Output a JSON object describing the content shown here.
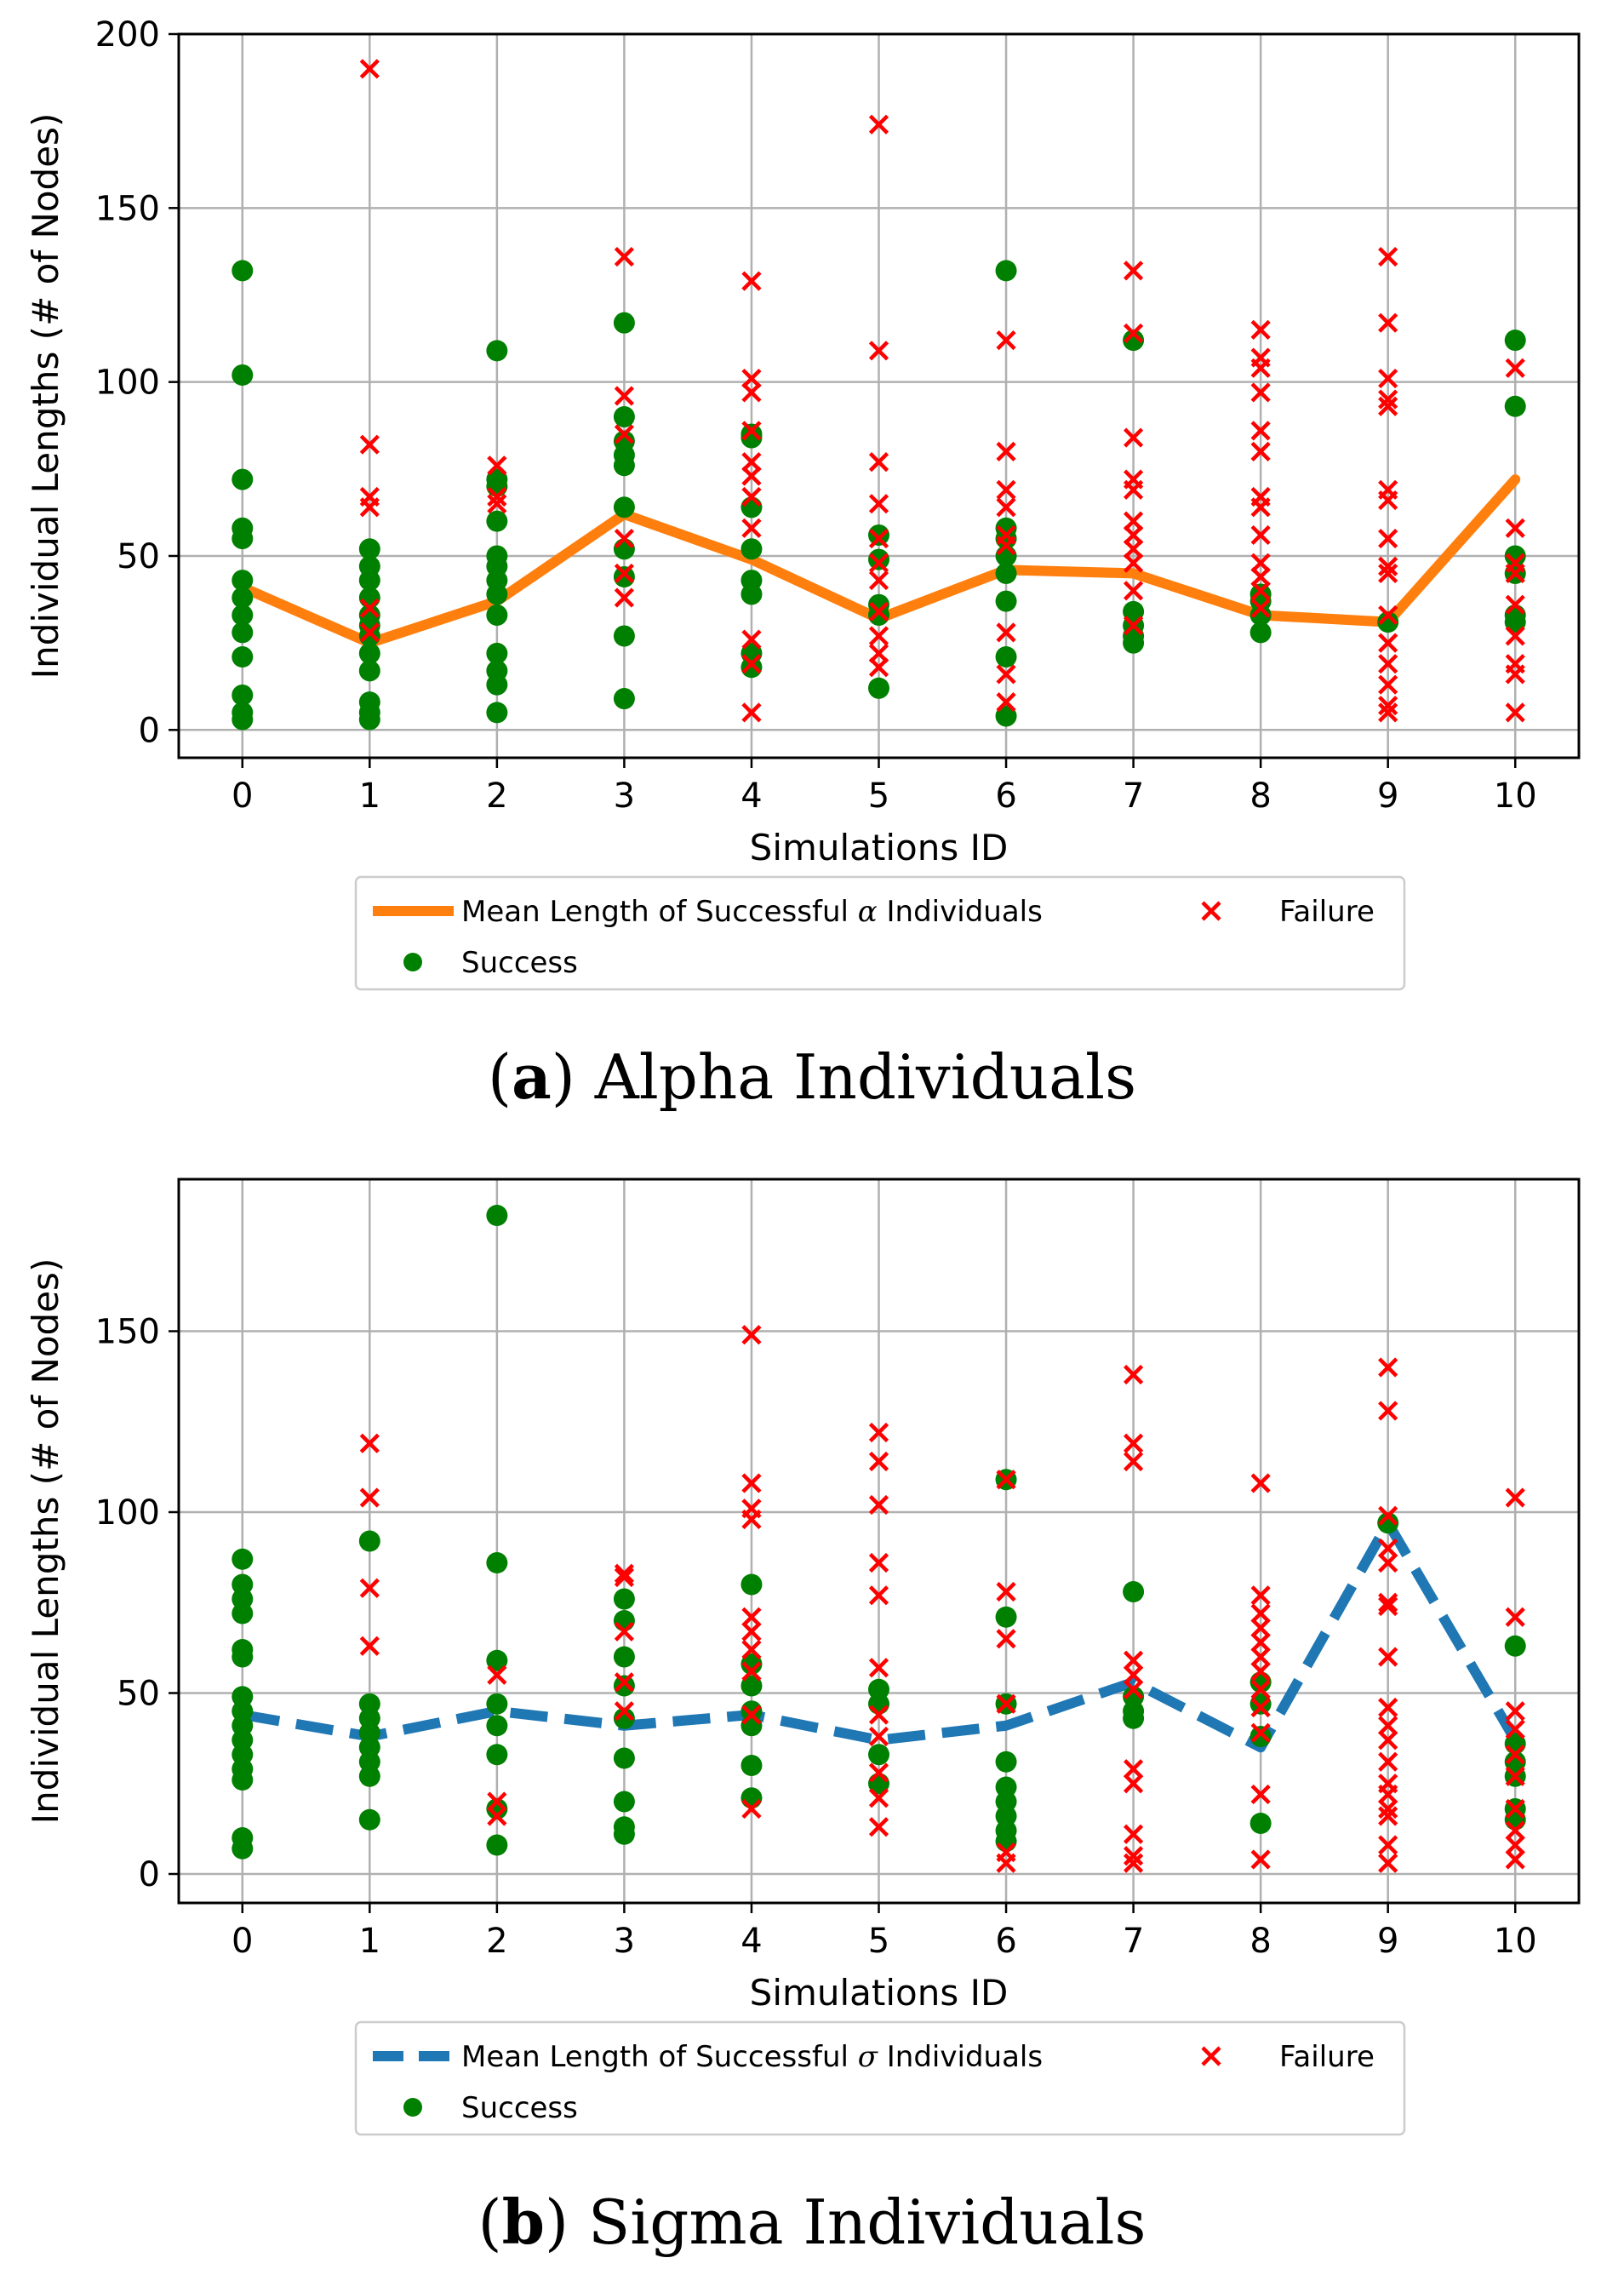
{
  "chart_data": [
    {
      "type": "scatter",
      "panel_id": "alpha",
      "caption": {
        "letter": "a",
        "text": "Alpha Individuals"
      },
      "xlabel": "Simulations ID",
      "ylabel": "Individual Lengths (# of Nodes)",
      "xlim": [
        -0.5,
        10.5
      ],
      "ylim": [
        -8,
        200
      ],
      "x_ticks": [
        "0",
        "1",
        "2",
        "3",
        "4",
        "5",
        "6",
        "7",
        "8",
        "9",
        "10"
      ],
      "y_ticks": [
        "0",
        "50",
        "100",
        "150",
        "200"
      ],
      "grid": true,
      "legend": {
        "placement": "below",
        "mean_label_pre": "Mean Length of Successful ",
        "greek": "α",
        "mean_label_post": " Individuals",
        "success_label": "Success",
        "failure_label": "Failure"
      },
      "colors": {
        "mean": "#ff7f0e",
        "success": "#008000",
        "failure": "#ff0000"
      },
      "mean_line": {
        "style": "solid",
        "x": [
          0,
          1,
          2,
          3,
          4,
          5,
          6,
          7,
          8,
          9,
          10
        ],
        "values": [
          41,
          25,
          37,
          62,
          49,
          32,
          46,
          45,
          33,
          31,
          72
        ]
      },
      "success": [
        [
          0,
          132
        ],
        [
          0,
          102
        ],
        [
          0,
          72
        ],
        [
          0,
          58
        ],
        [
          0,
          55
        ],
        [
          0,
          43
        ],
        [
          0,
          38
        ],
        [
          0,
          33
        ],
        [
          0,
          28
        ],
        [
          0,
          21
        ],
        [
          0,
          10
        ],
        [
          0,
          5
        ],
        [
          0,
          3
        ],
        [
          1,
          52
        ],
        [
          1,
          47
        ],
        [
          1,
          43
        ],
        [
          1,
          38
        ],
        [
          1,
          33
        ],
        [
          1,
          30
        ],
        [
          1,
          27
        ],
        [
          1,
          22
        ],
        [
          1,
          17
        ],
        [
          1,
          8
        ],
        [
          1,
          5
        ],
        [
          1,
          3
        ],
        [
          2,
          109
        ],
        [
          2,
          72
        ],
        [
          2,
          70
        ],
        [
          2,
          60
        ],
        [
          2,
          50
        ],
        [
          2,
          47
        ],
        [
          2,
          43
        ],
        [
          2,
          39
        ],
        [
          2,
          33
        ],
        [
          2,
          22
        ],
        [
          2,
          17
        ],
        [
          2,
          13
        ],
        [
          2,
          5
        ],
        [
          3,
          117
        ],
        [
          3,
          90
        ],
        [
          3,
          83
        ],
        [
          3,
          79
        ],
        [
          3,
          76
        ],
        [
          3,
          64
        ],
        [
          3,
          52
        ],
        [
          3,
          44
        ],
        [
          3,
          27
        ],
        [
          3,
          9
        ],
        [
          4,
          85
        ],
        [
          4,
          84
        ],
        [
          4,
          64
        ],
        [
          4,
          52
        ],
        [
          4,
          43
        ],
        [
          4,
          39
        ],
        [
          4,
          22
        ],
        [
          4,
          18
        ],
        [
          5,
          56
        ],
        [
          5,
          49
        ],
        [
          5,
          36
        ],
        [
          5,
          33
        ],
        [
          5,
          12
        ],
        [
          6,
          132
        ],
        [
          6,
          58
        ],
        [
          6,
          55
        ],
        [
          6,
          50
        ],
        [
          6,
          45
        ],
        [
          6,
          37
        ],
        [
          6,
          21
        ],
        [
          6,
          4
        ],
        [
          7,
          112
        ],
        [
          7,
          34
        ],
        [
          7,
          30
        ],
        [
          7,
          27
        ],
        [
          7,
          25
        ],
        [
          8,
          39
        ],
        [
          8,
          37
        ],
        [
          8,
          33
        ],
        [
          8,
          28
        ],
        [
          9,
          31
        ],
        [
          10,
          112
        ],
        [
          10,
          93
        ],
        [
          10,
          50
        ],
        [
          10,
          45
        ],
        [
          10,
          33
        ],
        [
          10,
          31
        ]
      ],
      "failure": [
        [
          1,
          190
        ],
        [
          1,
          82
        ],
        [
          1,
          67
        ],
        [
          1,
          64
        ],
        [
          1,
          35
        ],
        [
          1,
          28
        ],
        [
          2,
          76
        ],
        [
          2,
          67
        ],
        [
          2,
          65
        ],
        [
          3,
          136
        ],
        [
          3,
          96
        ],
        [
          3,
          85
        ],
        [
          3,
          55
        ],
        [
          3,
          45
        ],
        [
          3,
          38
        ],
        [
          4,
          129
        ],
        [
          4,
          101
        ],
        [
          4,
          97
        ],
        [
          4,
          86
        ],
        [
          4,
          77
        ],
        [
          4,
          73
        ],
        [
          4,
          67
        ],
        [
          4,
          58
        ],
        [
          4,
          26
        ],
        [
          4,
          19
        ],
        [
          4,
          5
        ],
        [
          5,
          174
        ],
        [
          5,
          109
        ],
        [
          5,
          77
        ],
        [
          5,
          65
        ],
        [
          5,
          55
        ],
        [
          5,
          48
        ],
        [
          5,
          43
        ],
        [
          5,
          34
        ],
        [
          5,
          27
        ],
        [
          5,
          22
        ],
        [
          5,
          18
        ],
        [
          6,
          112
        ],
        [
          6,
          80
        ],
        [
          6,
          69
        ],
        [
          6,
          64
        ],
        [
          6,
          56
        ],
        [
          6,
          53
        ],
        [
          6,
          28
        ],
        [
          6,
          16
        ],
        [
          6,
          8
        ],
        [
          7,
          132
        ],
        [
          7,
          114
        ],
        [
          7,
          84
        ],
        [
          7,
          72
        ],
        [
          7,
          69
        ],
        [
          7,
          60
        ],
        [
          7,
          56
        ],
        [
          7,
          52
        ],
        [
          7,
          48
        ],
        [
          7,
          40
        ],
        [
          7,
          30
        ],
        [
          8,
          115
        ],
        [
          8,
          107
        ],
        [
          8,
          104
        ],
        [
          8,
          97
        ],
        [
          8,
          86
        ],
        [
          8,
          80
        ],
        [
          8,
          67
        ],
        [
          8,
          64
        ],
        [
          8,
          56
        ],
        [
          8,
          48
        ],
        [
          8,
          44
        ],
        [
          8,
          40
        ],
        [
          8,
          35
        ],
        [
          9,
          136
        ],
        [
          9,
          117
        ],
        [
          9,
          101
        ],
        [
          9,
          95
        ],
        [
          9,
          93
        ],
        [
          9,
          69
        ],
        [
          9,
          66
        ],
        [
          9,
          55
        ],
        [
          9,
          47
        ],
        [
          9,
          45
        ],
        [
          9,
          33
        ],
        [
          9,
          25
        ],
        [
          9,
          19
        ],
        [
          9,
          13
        ],
        [
          9,
          7
        ],
        [
          9,
          5
        ],
        [
          10,
          104
        ],
        [
          10,
          58
        ],
        [
          10,
          48
        ],
        [
          10,
          45
        ],
        [
          10,
          36
        ],
        [
          10,
          27
        ],
        [
          10,
          19
        ],
        [
          10,
          16
        ],
        [
          10,
          5
        ]
      ]
    },
    {
      "type": "scatter",
      "panel_id": "sigma",
      "caption": {
        "letter": "b",
        "text": "Sigma Individuals"
      },
      "xlabel": "Simulations ID",
      "ylabel": "Individual Lengths (# of Nodes)",
      "xlim": [
        -0.5,
        10.5
      ],
      "ylim": [
        -8,
        192
      ],
      "x_ticks": [
        "0",
        "1",
        "2",
        "3",
        "4",
        "5",
        "6",
        "7",
        "8",
        "9",
        "10"
      ],
      "y_ticks": [
        "0",
        "50",
        "100",
        "150"
      ],
      "grid": true,
      "legend": {
        "placement": "below",
        "mean_label_pre": "Mean Length of Successful ",
        "greek": "σ",
        "mean_label_post": " Individuals",
        "success_label": "Success",
        "failure_label": "Failure"
      },
      "colors": {
        "mean": "#1f77b4",
        "success": "#008000",
        "failure": "#ff0000"
      },
      "mean_line": {
        "style": "dashed",
        "x": [
          0,
          1,
          2,
          3,
          4,
          5,
          6,
          7,
          8,
          9,
          10
        ],
        "values": [
          44,
          38,
          45,
          41,
          44,
          37,
          41,
          53,
          35,
          97,
          37
        ]
      },
      "success": [
        [
          0,
          87
        ],
        [
          0,
          80
        ],
        [
          0,
          76
        ],
        [
          0,
          72
        ],
        [
          0,
          62
        ],
        [
          0,
          60
        ],
        [
          0,
          49
        ],
        [
          0,
          45
        ],
        [
          0,
          41
        ],
        [
          0,
          37
        ],
        [
          0,
          33
        ],
        [
          0,
          29
        ],
        [
          0,
          26
        ],
        [
          0,
          10
        ],
        [
          0,
          7
        ],
        [
          1,
          92
        ],
        [
          1,
          47
        ],
        [
          1,
          43
        ],
        [
          1,
          39
        ],
        [
          1,
          35
        ],
        [
          1,
          31
        ],
        [
          1,
          27
        ],
        [
          1,
          15
        ],
        [
          2,
          182
        ],
        [
          2,
          86
        ],
        [
          2,
          59
        ],
        [
          2,
          47
        ],
        [
          2,
          41
        ],
        [
          2,
          33
        ],
        [
          2,
          18
        ],
        [
          2,
          8
        ],
        [
          3,
          76
        ],
        [
          3,
          70
        ],
        [
          3,
          60
        ],
        [
          3,
          52
        ],
        [
          3,
          43
        ],
        [
          3,
          32
        ],
        [
          3,
          20
        ],
        [
          3,
          13
        ],
        [
          3,
          11
        ],
        [
          4,
          80
        ],
        [
          4,
          58
        ],
        [
          4,
          52
        ],
        [
          4,
          45
        ],
        [
          4,
          41
        ],
        [
          4,
          30
        ],
        [
          4,
          21
        ],
        [
          5,
          51
        ],
        [
          5,
          47
        ],
        [
          5,
          33
        ],
        [
          5,
          25
        ],
        [
          6,
          109
        ],
        [
          6,
          71
        ],
        [
          6,
          47
        ],
        [
          6,
          31
        ],
        [
          6,
          24
        ],
        [
          6,
          20
        ],
        [
          6,
          16
        ],
        [
          6,
          12
        ],
        [
          6,
          9
        ],
        [
          7,
          78
        ],
        [
          7,
          49
        ],
        [
          7,
          45
        ],
        [
          7,
          43
        ],
        [
          8,
          53
        ],
        [
          8,
          47
        ],
        [
          8,
          38
        ],
        [
          8,
          14
        ],
        [
          9,
          97
        ],
        [
          10,
          63
        ],
        [
          10,
          36
        ],
        [
          10,
          31
        ],
        [
          10,
          27
        ],
        [
          10,
          18
        ],
        [
          10,
          15
        ]
      ],
      "failure": [
        [
          1,
          119
        ],
        [
          1,
          104
        ],
        [
          1,
          79
        ],
        [
          1,
          63
        ],
        [
          2,
          55
        ],
        [
          2,
          20
        ],
        [
          2,
          16
        ],
        [
          3,
          83
        ],
        [
          3,
          82
        ],
        [
          3,
          67
        ],
        [
          3,
          53
        ],
        [
          3,
          45
        ],
        [
          4,
          149
        ],
        [
          4,
          108
        ],
        [
          4,
          101
        ],
        [
          4,
          98
        ],
        [
          4,
          71
        ],
        [
          4,
          67
        ],
        [
          4,
          62
        ],
        [
          4,
          56
        ],
        [
          4,
          44
        ],
        [
          4,
          18
        ],
        [
          5,
          122
        ],
        [
          5,
          114
        ],
        [
          5,
          102
        ],
        [
          5,
          86
        ],
        [
          5,
          77
        ],
        [
          5,
          57
        ],
        [
          5,
          44
        ],
        [
          5,
          38
        ],
        [
          5,
          28
        ],
        [
          5,
          21
        ],
        [
          5,
          13
        ],
        [
          6,
          109
        ],
        [
          6,
          78
        ],
        [
          6,
          65
        ],
        [
          6,
          47
        ],
        [
          6,
          6
        ],
        [
          6,
          3
        ],
        [
          7,
          138
        ],
        [
          7,
          119
        ],
        [
          7,
          114
        ],
        [
          7,
          59
        ],
        [
          7,
          55
        ],
        [
          7,
          51
        ],
        [
          7,
          29
        ],
        [
          7,
          25
        ],
        [
          7,
          11
        ],
        [
          7,
          5
        ],
        [
          7,
          3
        ],
        [
          8,
          108
        ],
        [
          8,
          77
        ],
        [
          8,
          72
        ],
        [
          8,
          68
        ],
        [
          8,
          64
        ],
        [
          8,
          60
        ],
        [
          8,
          56
        ],
        [
          8,
          51
        ],
        [
          8,
          46
        ],
        [
          8,
          39
        ],
        [
          8,
          22
        ],
        [
          8,
          4
        ],
        [
          9,
          140
        ],
        [
          9,
          128
        ],
        [
          9,
          99
        ],
        [
          9,
          90
        ],
        [
          9,
          86
        ],
        [
          9,
          75
        ],
        [
          9,
          74
        ],
        [
          9,
          60
        ],
        [
          9,
          46
        ],
        [
          9,
          41
        ],
        [
          9,
          37
        ],
        [
          9,
          31
        ],
        [
          9,
          25
        ],
        [
          9,
          22
        ],
        [
          9,
          18
        ],
        [
          9,
          16
        ],
        [
          9,
          8
        ],
        [
          9,
          3
        ],
        [
          10,
          104
        ],
        [
          10,
          71
        ],
        [
          10,
          45
        ],
        [
          10,
          40
        ],
        [
          10,
          33
        ],
        [
          10,
          27
        ],
        [
          10,
          18
        ],
        [
          10,
          12
        ],
        [
          10,
          8
        ],
        [
          10,
          4
        ]
      ]
    }
  ]
}
